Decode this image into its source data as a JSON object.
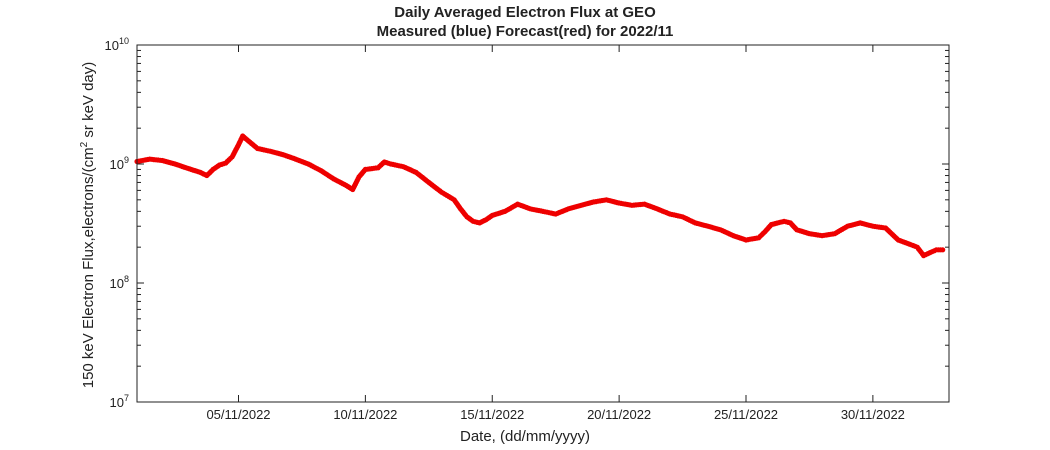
{
  "chart_data": {
    "type": "scatter",
    "title": "Daily Averaged Electron Flux at GEO",
    "subtitle": "Measured (blue) Forecast(red) for 2022/11",
    "xlabel": "Date, (dd/mm/yyyy)",
    "ylabel": {
      "main": "150 keV Electron Flux,electrons/(cm",
      "sup": "2",
      "tail": " sr keV day)"
    },
    "yscale": "log",
    "xlim": [
      "2022-11-01",
      "2022-12-03"
    ],
    "ylim": [
      10000000,
      10000000000
    ],
    "xticks": [
      {
        "date": "2022-11-05",
        "label": "05/11/2022"
      },
      {
        "date": "2022-11-10",
        "label": "10/11/2022"
      },
      {
        "date": "2022-11-15",
        "label": "15/11/2022"
      },
      {
        "date": "2022-11-20",
        "label": "20/11/2022"
      },
      {
        "date": "2022-11-25",
        "label": "25/11/2022"
      },
      {
        "date": "2022-11-30",
        "label": "30/11/2022"
      }
    ],
    "yticks": [
      {
        "value": 10000000,
        "base": "10",
        "exp": "7"
      },
      {
        "value": 100000000,
        "base": "10",
        "exp": "8"
      },
      {
        "value": 1000000000,
        "base": "10",
        "exp": "9"
      },
      {
        "value": 10000000000,
        "base": "10",
        "exp": "10"
      }
    ],
    "grid": false,
    "series": [
      {
        "color": "#ee0000",
        "points": [
          [
            "2022-11-01T00:00",
            1050000000.0
          ],
          [
            "2022-11-01T12:00",
            1100000000.0
          ],
          [
            "2022-11-02T00:00",
            1070000000.0
          ],
          [
            "2022-11-02T12:00",
            1000000000.0
          ],
          [
            "2022-11-03T00:00",
            920000000.0
          ],
          [
            "2022-11-03T12:00",
            850000000.0
          ],
          [
            "2022-11-03T18:00",
            800000000.0
          ],
          [
            "2022-11-04T00:00",
            900000000.0
          ],
          [
            "2022-11-04T06:00",
            980000000.0
          ],
          [
            "2022-11-04T12:00",
            1020000000.0
          ],
          [
            "2022-11-04T18:00",
            1150000000.0
          ],
          [
            "2022-11-05T00:00",
            1450000000.0
          ],
          [
            "2022-11-05T04:00",
            1720000000.0
          ],
          [
            "2022-11-05T08:00",
            1600000000.0
          ],
          [
            "2022-11-05T18:00",
            1350000000.0
          ],
          [
            "2022-11-06T06:00",
            1280000000.0
          ],
          [
            "2022-11-06T18:00",
            1200000000.0
          ],
          [
            "2022-11-07T06:00",
            1100000000.0
          ],
          [
            "2022-11-07T18:00",
            1000000000.0
          ],
          [
            "2022-11-08T06:00",
            880000000.0
          ],
          [
            "2022-11-08T18:00",
            750000000.0
          ],
          [
            "2022-11-09T06:00",
            660000000.0
          ],
          [
            "2022-11-09T12:00",
            610000000.0
          ],
          [
            "2022-11-09T18:00",
            780000000.0
          ],
          [
            "2022-11-10T00:00",
            900000000.0
          ],
          [
            "2022-11-10T12:00",
            930000000.0
          ],
          [
            "2022-11-10T18:00",
            1040000000.0
          ],
          [
            "2022-11-11T00:00",
            1000000000.0
          ],
          [
            "2022-11-11T12:00",
            950000000.0
          ],
          [
            "2022-11-12T00:00",
            850000000.0
          ],
          [
            "2022-11-12T12:00",
            700000000.0
          ],
          [
            "2022-11-13T00:00",
            580000000.0
          ],
          [
            "2022-11-13T12:00",
            500000000.0
          ],
          [
            "2022-11-13T18:00",
            420000000.0
          ],
          [
            "2022-11-14T00:00",
            360000000.0
          ],
          [
            "2022-11-14T06:00",
            330000000.0
          ],
          [
            "2022-11-14T12:00",
            320000000.0
          ],
          [
            "2022-11-14T18:00",
            340000000.0
          ],
          [
            "2022-11-15T00:00",
            370000000.0
          ],
          [
            "2022-11-15T12:00",
            400000000.0
          ],
          [
            "2022-11-16T00:00",
            460000000.0
          ],
          [
            "2022-11-16T12:00",
            420000000.0
          ],
          [
            "2022-11-17T00:00",
            400000000.0
          ],
          [
            "2022-11-17T12:00",
            380000000.0
          ],
          [
            "2022-11-18T00:00",
            420000000.0
          ],
          [
            "2022-11-18T12:00",
            450000000.0
          ],
          [
            "2022-11-19T00:00",
            480000000.0
          ],
          [
            "2022-11-19T12:00",
            500000000.0
          ],
          [
            "2022-11-20T00:00",
            470000000.0
          ],
          [
            "2022-11-20T12:00",
            450000000.0
          ],
          [
            "2022-11-21T00:00",
            460000000.0
          ],
          [
            "2022-11-21T12:00",
            420000000.0
          ],
          [
            "2022-11-22T00:00",
            380000000.0
          ],
          [
            "2022-11-22T12:00",
            360000000.0
          ],
          [
            "2022-11-23T00:00",
            320000000.0
          ],
          [
            "2022-11-23T12:00",
            300000000.0
          ],
          [
            "2022-11-24T00:00",
            280000000.0
          ],
          [
            "2022-11-24T12:00",
            250000000.0
          ],
          [
            "2022-11-25T00:00",
            230000000.0
          ],
          [
            "2022-11-25T12:00",
            240000000.0
          ],
          [
            "2022-11-25T18:00",
            270000000.0
          ],
          [
            "2022-11-26T00:00",
            310000000.0
          ],
          [
            "2022-11-26T12:00",
            330000000.0
          ],
          [
            "2022-11-26T18:00",
            320000000.0
          ],
          [
            "2022-11-27T00:00",
            280000000.0
          ],
          [
            "2022-11-27T12:00",
            260000000.0
          ],
          [
            "2022-11-28T00:00",
            250000000.0
          ],
          [
            "2022-11-28T12:00",
            260000000.0
          ],
          [
            "2022-11-29T00:00",
            300000000.0
          ],
          [
            "2022-11-29T12:00",
            320000000.0
          ],
          [
            "2022-11-30T00:00",
            300000000.0
          ],
          [
            "2022-11-30T12:00",
            290000000.0
          ],
          [
            "2022-12-01T00:00",
            230000000.0
          ],
          [
            "2022-12-01T12:00",
            210000000.0
          ],
          [
            "2022-12-01T18:00",
            200000000.0
          ],
          [
            "2022-12-02T00:00",
            170000000.0
          ],
          [
            "2022-12-02T06:00",
            180000000.0
          ],
          [
            "2022-12-02T12:00",
            190000000.0
          ],
          [
            "2022-12-02T18:00",
            190000000.0
          ]
        ]
      }
    ]
  }
}
